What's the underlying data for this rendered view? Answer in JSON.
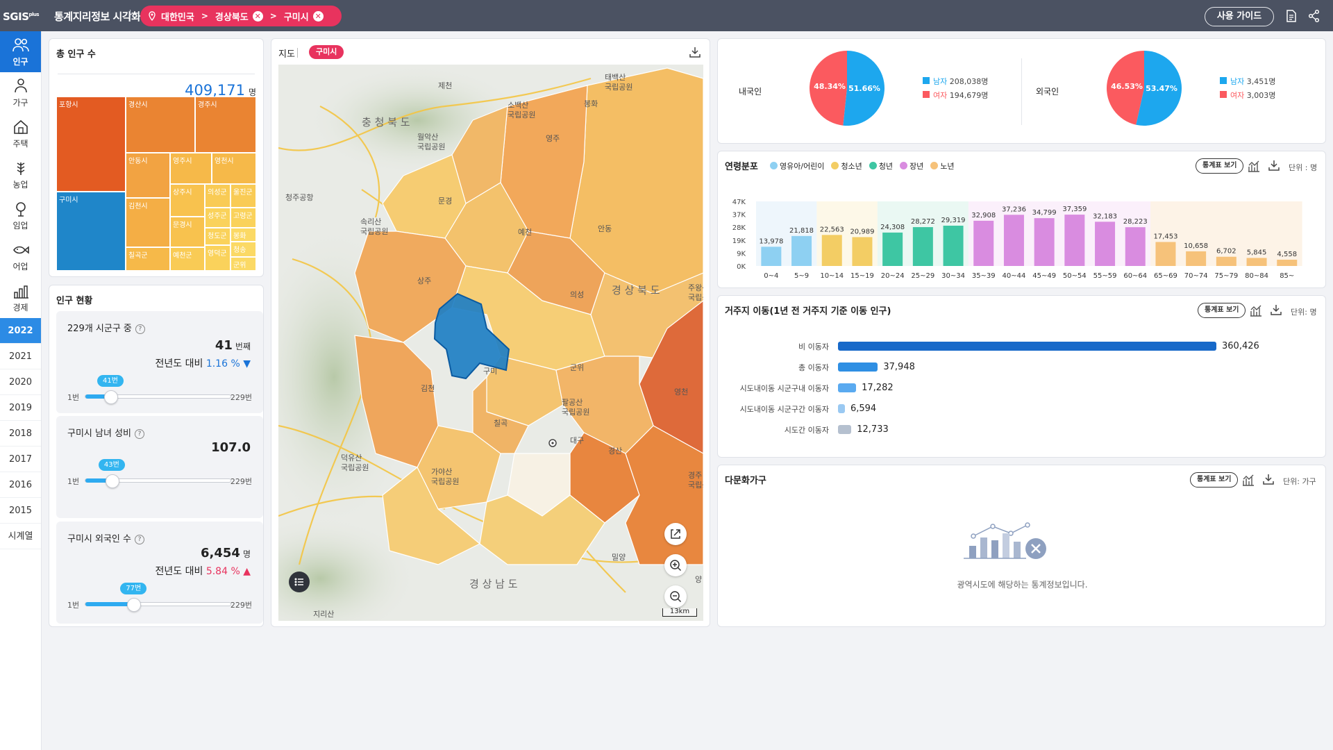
{
  "header": {
    "logo": "SGIS",
    "logo_sup": "plus",
    "title": "통계지리정보 시각화지도",
    "breadcrumb": [
      "대한민국",
      "경상북도",
      "구미시"
    ],
    "guide_label": "사용 가이드"
  },
  "sidebar": {
    "items": [
      {
        "label": "인구",
        "icon": "people-icon"
      },
      {
        "label": "가구",
        "icon": "household-icon"
      },
      {
        "label": "주택",
        "icon": "house-icon"
      },
      {
        "label": "농업",
        "icon": "wheat-icon"
      },
      {
        "label": "임업",
        "icon": "tree-icon"
      },
      {
        "label": "어업",
        "icon": "fish-icon"
      },
      {
        "label": "경제",
        "icon": "economy-icon"
      }
    ],
    "active": "인구",
    "years": [
      "2022",
      "2021",
      "2020",
      "2019",
      "2018",
      "2017",
      "2016",
      "2015",
      "시계열"
    ],
    "active_year": "2022"
  },
  "total": {
    "title": "총 인구 수",
    "value": "409,171",
    "unit": "명",
    "treemap": [
      {
        "name": "포항시",
        "color": "#e35b22"
      },
      {
        "name": "경산시",
        "color": "#ea8432"
      },
      {
        "name": "경주시",
        "color": "#ea8432"
      },
      {
        "name": "구미시",
        "color": "#1f86c9"
      },
      {
        "name": "안동시",
        "color": "#f2a342"
      },
      {
        "name": "영주시",
        "color": "#f6b949"
      },
      {
        "name": "영천시",
        "color": "#f6b949"
      },
      {
        "name": "김천시",
        "color": "#f4ae45"
      },
      {
        "name": "상주시",
        "color": "#f8c24e"
      },
      {
        "name": "의성군",
        "color": "#f9cb55"
      },
      {
        "name": "울진군",
        "color": "#f9cb55"
      },
      {
        "name": "성주군",
        "color": "#fad25b"
      },
      {
        "name": "고령군",
        "color": "#fad25b"
      },
      {
        "name": "문경시",
        "color": "#f8c24e"
      },
      {
        "name": "청도군",
        "color": "#fad25b"
      },
      {
        "name": "봉화",
        "color": "#fbd965"
      },
      {
        "name": "칠곡군",
        "color": "#f6b949"
      },
      {
        "name": "예천군",
        "color": "#f9cb55"
      },
      {
        "name": "영덕군",
        "color": "#fad25b"
      },
      {
        "name": "청송",
        "color": "#fbd965"
      },
      {
        "name": "군위",
        "color": "#fbd965"
      }
    ]
  },
  "status": {
    "title": "인구 현황",
    "rank": {
      "title": "229개 시군구 중",
      "value": "41",
      "unit": "번째",
      "cmp_label": "전년도 대비",
      "cmp_value": "1.16 %",
      "dir": "▼",
      "min": "1번",
      "max": "229번",
      "tip": "41번",
      "pos": 41
    },
    "ratio": {
      "title": "구미시 남녀 성비",
      "value": "107.0",
      "min": "1번",
      "max": "229번",
      "tip": "43번",
      "pos": 43
    },
    "foreign": {
      "title": "구미시 외국인 수",
      "value": "6,454",
      "unit": "명",
      "cmp_label": "전년도 대비",
      "cmp_value": "5.84 %",
      "dir": "▲",
      "min": "1번",
      "max": "229번",
      "tip": "77번",
      "pos": 77
    }
  },
  "map": {
    "title": "지도",
    "tag": "구미시",
    "scale": "13km",
    "labels": [
      {
        "t": "제천",
        "x": 230,
        "y": 34
      },
      {
        "t": "충 청 북 도",
        "x": 120,
        "y": 88
      },
      {
        "t": "월악산",
        "x": 200,
        "y": 108
      },
      {
        "t": "국립공원",
        "x": 200,
        "y": 122
      },
      {
        "t": "소백산",
        "x": 330,
        "y": 62
      },
      {
        "t": "국립공원",
        "x": 330,
        "y": 76
      },
      {
        "t": "영주",
        "x": 385,
        "y": 110
      },
      {
        "t": "태백산",
        "x": 470,
        "y": 22
      },
      {
        "t": "국립공원",
        "x": 470,
        "y": 36
      },
      {
        "t": "봉화",
        "x": 440,
        "y": 60
      },
      {
        "t": "문경",
        "x": 230,
        "y": 200
      },
      {
        "t": "예천",
        "x": 345,
        "y": 245
      },
      {
        "t": "안동",
        "x": 460,
        "y": 240
      },
      {
        "t": "속리산",
        "x": 118,
        "y": 230
      },
      {
        "t": "국립공원",
        "x": 118,
        "y": 244
      },
      {
        "t": "상주",
        "x": 200,
        "y": 315
      },
      {
        "t": "의성",
        "x": 420,
        "y": 335
      },
      {
        "t": "경 상 북 도",
        "x": 480,
        "y": 330
      },
      {
        "t": "주왕산",
        "x": 590,
        "y": 325
      },
      {
        "t": "국립공원",
        "x": 590,
        "y": 339
      },
      {
        "t": "구미",
        "x": 295,
        "y": 445
      },
      {
        "t": "김천",
        "x": 205,
        "y": 470
      },
      {
        "t": "군위",
        "x": 420,
        "y": 440
      },
      {
        "t": "영천",
        "x": 570,
        "y": 475
      },
      {
        "t": "팔공산",
        "x": 408,
        "y": 490
      },
      {
        "t": "국립공원",
        "x": 408,
        "y": 504
      },
      {
        "t": "칠곡",
        "x": 310,
        "y": 520
      },
      {
        "t": "덕유산",
        "x": 90,
        "y": 570
      },
      {
        "t": "국립공원",
        "x": 90,
        "y": 584
      },
      {
        "t": "가야산",
        "x": 220,
        "y": 590
      },
      {
        "t": "국립공원",
        "x": 220,
        "y": 604
      },
      {
        "t": "대구",
        "x": 420,
        "y": 545
      },
      {
        "t": "경산",
        "x": 475,
        "y": 560
      },
      {
        "t": "경주",
        "x": 590,
        "y": 595
      },
      {
        "t": "국립공원",
        "x": 590,
        "y": 609
      },
      {
        "t": "밀양",
        "x": 480,
        "y": 713
      },
      {
        "t": "경 상 남 도",
        "x": 275,
        "y": 753
      },
      {
        "t": "지리산",
        "x": 50,
        "y": 795
      },
      {
        "t": "청주공항",
        "x": 10,
        "y": 195
      },
      {
        "t": "양",
        "x": 600,
        "y": 745
      }
    ]
  },
  "donut": {
    "domestic_label": "내국인",
    "foreign_label": "외국인",
    "domestic": {
      "male_pct": "51.66%",
      "female_pct": "48.34%",
      "male_label": "남자",
      "male_value": "208,038명",
      "female_label": "여자",
      "female_value": "194,679명",
      "male": 51.66
    },
    "foreign": {
      "male_pct": "53.47%",
      "female_pct": "46.53%",
      "male_label": "남자",
      "male_value": "3,451명",
      "female_label": "여자",
      "female_value": "3,003명",
      "male": 53.47
    },
    "male_color": "#1da7ee",
    "female_color": "#fb5a5f"
  },
  "age": {
    "title": "연령분포",
    "legend": [
      {
        "name": "영유아/어린이",
        "color": "#8ed0f2"
      },
      {
        "name": "청소년",
        "color": "#f3cd64"
      },
      {
        "name": "청년",
        "color": "#3ec6a3"
      },
      {
        "name": "장년",
        "color": "#d98ce0"
      },
      {
        "name": "노년",
        "color": "#f6c27a"
      }
    ],
    "btn": "통계표 보기",
    "unit": "단위 : 명",
    "yticks": [
      "47K",
      "37K",
      "28K",
      "19K",
      "9K",
      "0K"
    ]
  },
  "chart_data": {
    "type": "bar",
    "categories": [
      "0~4",
      "5~9",
      "10~14",
      "15~19",
      "20~24",
      "25~29",
      "30~34",
      "35~39",
      "40~44",
      "45~49",
      "50~54",
      "55~59",
      "60~64",
      "65~69",
      "70~74",
      "75~79",
      "80~84",
      "85~"
    ],
    "values": [
      13978,
      21818,
      22563,
      20989,
      24308,
      28272,
      29319,
      32908,
      37236,
      34799,
      37359,
      32183,
      28223,
      17453,
      10658,
      6702,
      5845,
      4558
    ],
    "labels": [
      "13,978",
      "21,818",
      "22,563",
      "20,989",
      "24,308",
      "28,272",
      "29,319",
      "32,908",
      "37,236",
      "34,799",
      "37,359",
      "32,183",
      "28,223",
      "17,453",
      "10,658",
      "6,702",
      "5,845",
      "4,558"
    ],
    "groups": [
      0,
      0,
      1,
      1,
      2,
      2,
      2,
      3,
      3,
      3,
      3,
      3,
      3,
      4,
      4,
      4,
      4,
      4
    ],
    "ylim": [
      0,
      47000
    ]
  },
  "move": {
    "title": "거주지 이동(1년 전 거주지 기준 이동 인구)",
    "btn": "통계표 보기",
    "unit": "단위: 명",
    "rows": [
      {
        "label": "비 이동자",
        "value": "360,426",
        "n": 360426,
        "color": "#1769c9"
      },
      {
        "label": "총 이동자",
        "value": "37,948",
        "n": 37948,
        "color": "#2f8fe3"
      },
      {
        "label": "시도내이동 시군구내 이동자",
        "value": "17,282",
        "n": 17282,
        "color": "#5aaaf0"
      },
      {
        "label": "시도내이동 시군구간 이동자",
        "value": "6,594",
        "n": 6594,
        "color": "#9ac9f2"
      },
      {
        "label": "시도간 이동자",
        "value": "12,733",
        "n": 12733,
        "color": "#b5c0cf"
      }
    ]
  },
  "multi": {
    "title": "다문화가구",
    "btn": "통계표 보기",
    "unit": "단위: 가구",
    "empty": "광역시도에 해당하는 통계정보입니다."
  }
}
